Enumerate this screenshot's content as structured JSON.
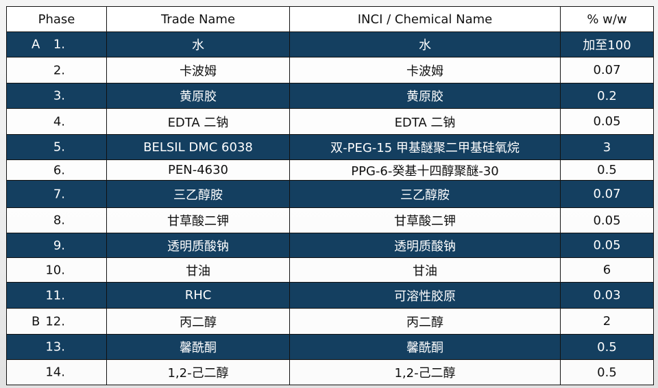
{
  "headers": [
    "Phase",
    "Trade Name",
    "INCI / Chemical Name",
    "% w/w"
  ],
  "rows": [
    {
      "phase": "A",
      "num": "1.",
      "trade": "水",
      "inci": "水",
      "pct": "加至100"
    },
    {
      "phase": "",
      "num": "2.",
      "trade": "卡波姆",
      "inci": "卡波姆",
      "pct": "0.07"
    },
    {
      "phase": "",
      "num": "3.",
      "trade": "黄原胶",
      "inci": "黄原胶",
      "pct": "0.2"
    },
    {
      "phase": "",
      "num": "4.",
      "trade": "EDTA 二钠",
      "inci": "EDTA 二钠",
      "pct": "0.05"
    },
    {
      "phase": "",
      "num": "5.",
      "trade": "BELSIL DMC 6038",
      "inci": "双-PEG-15 甲基醚聚二甲基硅氧烷",
      "pct": "3"
    },
    {
      "phase": "",
      "num": "6.",
      "trade": "PEN-4630",
      "inci": "PPG-6-癸基十四醇聚醚-30",
      "pct": "0.5"
    },
    {
      "phase": "",
      "num": "7.",
      "trade": "三乙醇胺",
      "inci": "三乙醇胺",
      "pct": "0.07"
    },
    {
      "phase": "",
      "num": "8.",
      "trade": "甘草酸二钾",
      "inci": "甘草酸二钾",
      "pct": "0.05"
    },
    {
      "phase": "",
      "num": "9.",
      "trade": "透明质酸钠",
      "inci": "透明质酸钠",
      "pct": "0.05"
    },
    {
      "phase": "",
      "num": "10.",
      "trade": "甘油",
      "inci": "甘油",
      "pct": "6"
    },
    {
      "phase": "",
      "num": "11.",
      "trade": "RHC",
      "inci": "可溶性胶原",
      "pct": "0.03"
    },
    {
      "phase": "B",
      "num": "12.",
      "trade": "丙二醇",
      "inci": "丙二醇",
      "pct": "2"
    },
    {
      "phase": "",
      "num": "13.",
      "trade": "馨酰酮",
      "inci": "馨酰酮",
      "pct": "0.5"
    },
    {
      "phase": "",
      "num": "14.",
      "trade": "1,2-己二醇",
      "inci": "1,2-己二醇",
      "pct": "0.5"
    }
  ],
  "colors": {
    "dark_row": "#143f60",
    "light_row": "#ffffff"
  }
}
